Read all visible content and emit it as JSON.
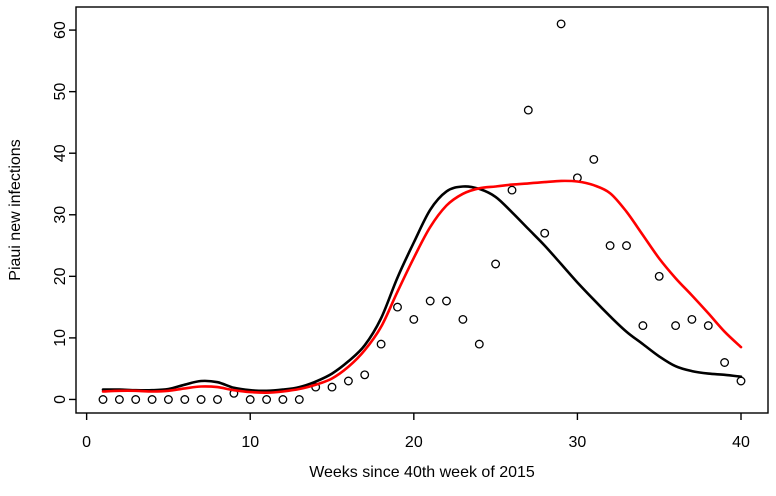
{
  "figure": {
    "background": "#FFFFFF"
  },
  "chart_data": {
    "type": "line",
    "title": "",
    "xlabel": "Weeks since 40th week of 2015",
    "ylabel": "Piaui new infections",
    "x": [
      1,
      2,
      3,
      4,
      5,
      6,
      7,
      8,
      9,
      10,
      11,
      12,
      13,
      14,
      15,
      16,
      17,
      18,
      19,
      20,
      21,
      22,
      23,
      24,
      25,
      26,
      27,
      28,
      29,
      30,
      31,
      32,
      33,
      34,
      35,
      36,
      37,
      38,
      39,
      40
    ],
    "series": [
      {
        "name": "observed weekly new infections",
        "style": "points",
        "marker": "open-circle",
        "color": "#000000",
        "values": [
          0,
          0,
          0,
          0,
          0,
          0,
          0,
          0,
          1,
          0,
          0,
          0,
          0,
          2,
          2,
          3,
          4,
          9,
          15,
          13,
          16,
          16,
          13,
          9,
          22,
          34,
          47,
          27,
          61,
          36,
          39,
          25,
          25,
          12,
          20,
          12,
          13,
          12,
          6,
          3
        ]
      },
      {
        "name": "model fit (black curve)",
        "style": "line",
        "color": "#000000",
        "values": [
          1.6,
          1.6,
          1.5,
          1.5,
          1.7,
          2.4,
          3.0,
          2.8,
          1.9,
          1.5,
          1.4,
          1.6,
          2.0,
          2.9,
          4.2,
          6.2,
          8.8,
          13.2,
          19.8,
          25.5,
          30.8,
          33.8,
          34.6,
          34.2,
          32.9,
          30.4,
          27.7,
          25.0,
          22.0,
          19.0,
          16.2,
          13.5,
          11.0,
          9.0,
          7.0,
          5.4,
          4.6,
          4.2,
          4.0,
          3.7
        ]
      },
      {
        "name": "model fit (red curve)",
        "style": "line",
        "color": "#FF0000",
        "values": [
          1.3,
          1.4,
          1.4,
          1.3,
          1.4,
          1.8,
          2.1,
          2.0,
          1.5,
          1.2,
          1.1,
          1.3,
          1.7,
          2.4,
          3.4,
          5.3,
          8.0,
          11.8,
          17.5,
          23.0,
          28.0,
          31.5,
          33.4,
          34.3,
          34.6,
          34.9,
          35.1,
          35.3,
          35.5,
          35.4,
          34.8,
          33.5,
          30.5,
          26.7,
          22.9,
          19.7,
          16.9,
          14.0,
          11.0,
          8.5
        ]
      }
    ],
    "xticks": [
      0,
      10,
      20,
      30,
      40
    ],
    "yticks": [
      0,
      10,
      20,
      30,
      40,
      50,
      60
    ],
    "xlim": [
      -0.65,
      41.65
    ],
    "ylim": [
      -2.2,
      63.75
    ],
    "grid": false,
    "legend_position": "none"
  }
}
